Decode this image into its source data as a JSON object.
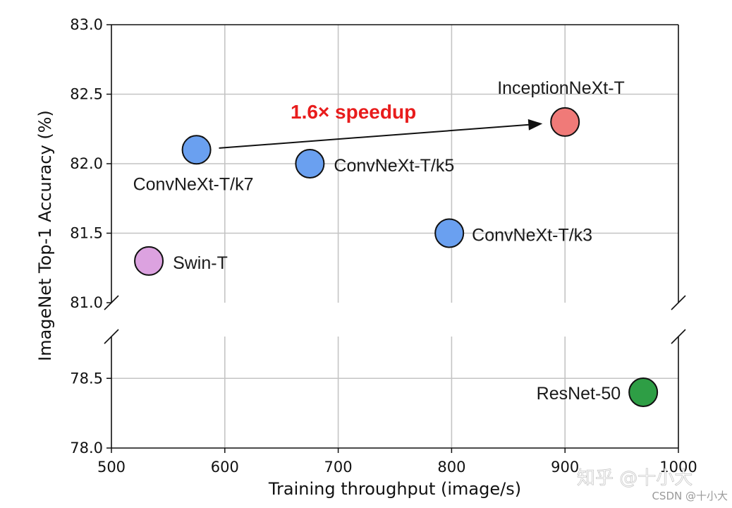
{
  "chart_data": {
    "type": "scatter",
    "xlabel": "Training throughput (image/s)",
    "ylabel": "ImageNet Top-1 Accuracy (%)",
    "xlim": [
      500,
      1000
    ],
    "x_ticks": [
      "500",
      "600",
      "700",
      "800",
      "900",
      "1000"
    ],
    "upper_panel": {
      "ylim": [
        81.0,
        83.0
      ],
      "y_ticks": [
        "81.0",
        "81.5",
        "82.0",
        "82.5",
        "83.0"
      ]
    },
    "lower_panel": {
      "ylim": [
        78.0,
        78.8
      ],
      "y_ticks": [
        "78.0",
        "78.5"
      ]
    },
    "grid": true,
    "axis_break": true,
    "points": [
      {
        "name": "ConvNeXt-T/k7",
        "x": 575,
        "y": 82.1,
        "color": "#6aa0f0",
        "panel": "upper"
      },
      {
        "name": "ConvNeXt-T/k5",
        "x": 675,
        "y": 82.0,
        "color": "#6aa0f0",
        "panel": "upper"
      },
      {
        "name": "ConvNeXt-T/k3",
        "x": 798,
        "y": 81.5,
        "color": "#6aa0f0",
        "panel": "upper"
      },
      {
        "name": "InceptionNeXt-T",
        "x": 900,
        "y": 82.3,
        "color": "#f07a78",
        "panel": "upper"
      },
      {
        "name": "Swin-T",
        "x": 533,
        "y": 81.3,
        "color": "#dca2e0",
        "panel": "upper"
      },
      {
        "name": "ResNet-50",
        "x": 969,
        "y": 78.4,
        "color": "#2e9e45",
        "panel": "lower"
      }
    ],
    "annotation": {
      "text": "1.6× speedup",
      "color": "#e81c1c",
      "from": "ConvNeXt-T/k7",
      "to": "InceptionNeXt-T"
    }
  },
  "watermark": {
    "text": "知乎 @十小大",
    "sub": "CSDN @十小大"
  }
}
